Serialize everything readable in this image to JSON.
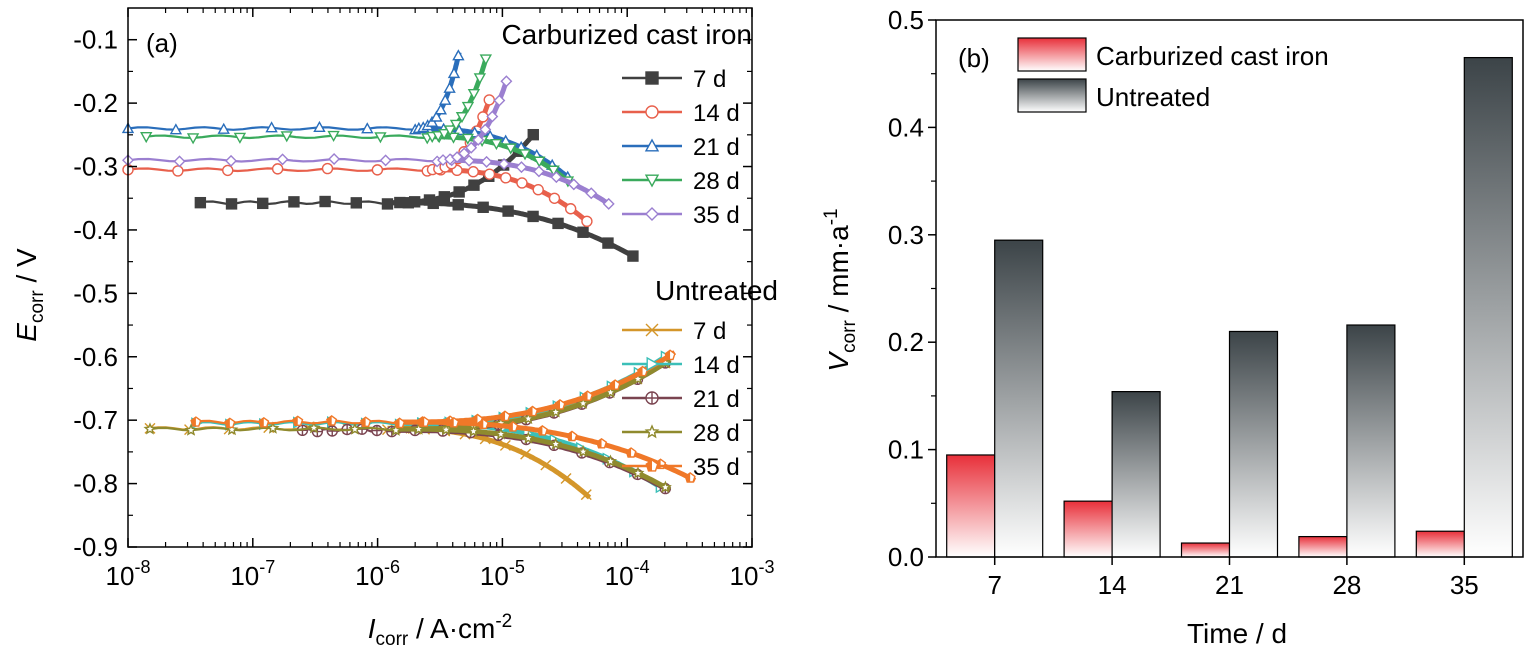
{
  "chart_data": [
    {
      "panel": "(a)",
      "type": "line",
      "x_scale": "log",
      "xlim": [
        1e-08,
        0.001
      ],
      "ylim": [
        -0.9,
        -0.05
      ],
      "xlabel": {
        "symbol": "I",
        "sub": "corr",
        "unit": " / A·cm",
        "sup": "-2"
      },
      "ylabel": {
        "symbol": "E",
        "sub": "corr",
        "unit": " / V"
      },
      "x_ticks": [
        {
          "value": 1e-08,
          "base": "10",
          "exp": "-8"
        },
        {
          "value": 1e-07,
          "base": "10",
          "exp": "-7"
        },
        {
          "value": 1e-06,
          "base": "10",
          "exp": "-6"
        },
        {
          "value": 1e-05,
          "base": "10",
          "exp": "-5"
        },
        {
          "value": 0.0001,
          "base": "10",
          "exp": "-4"
        },
        {
          "value": 0.001,
          "base": "10",
          "exp": "-3"
        }
      ],
      "y_ticks": [
        {
          "value": -0.1,
          "label": "-0.1"
        },
        {
          "value": -0.2,
          "label": "-0.2"
        },
        {
          "value": -0.3,
          "label": "-0.3"
        },
        {
          "value": -0.4,
          "label": "-0.4"
        },
        {
          "value": -0.5,
          "label": "-0.5"
        },
        {
          "value": -0.6,
          "label": "-0.6"
        },
        {
          "value": -0.7,
          "label": "-0.7"
        },
        {
          "value": -0.8,
          "label": "-0.8"
        },
        {
          "value": -0.9,
          "label": "-0.9"
        }
      ],
      "groups": [
        {
          "title": "Carburized cast iron",
          "series": [
            {
              "name": "7 d",
              "color": "#404040",
              "marker": "square",
              "ecorr": -0.357,
              "icorr": 1.2e-06,
              "start_i": 3.8e-08,
              "anodic_end": [
                1.85e-05,
                -0.245
              ],
              "cathodic_end": [
                0.00012,
                -0.445
              ]
            },
            {
              "name": "14 d",
              "color": "#e8604c",
              "marker": "circle",
              "ecorr": -0.305,
              "icorr": 2.5e-06,
              "start_i": 1e-08,
              "anodic_end": [
                8e-06,
                -0.19
              ],
              "cathodic_end": [
                5e-05,
                -0.39
              ]
            },
            {
              "name": "21 d",
              "color": "#2a6ebb",
              "marker": "triangle-up",
              "ecorr": -0.24,
              "icorr": 2e-06,
              "start_i": 1e-08,
              "anodic_end": [
                4.5e-06,
                -0.12
              ],
              "cathodic_end": [
                3.5e-05,
                -0.32
              ]
            },
            {
              "name": "28 d",
              "color": "#3aaa5c",
              "marker": "triangle-down",
              "ecorr": -0.253,
              "icorr": 2.5e-06,
              "start_i": 1.4e-08,
              "anodic_end": [
                7.5e-06,
                -0.125
              ],
              "cathodic_end": [
                3.5e-05,
                -0.326
              ]
            },
            {
              "name": "35 d",
              "color": "#9b7fd0",
              "marker": "diamond",
              "ecorr": -0.29,
              "icorr": 3e-06,
              "start_i": 1e-08,
              "anodic_end": [
                1.1e-05,
                -0.16
              ],
              "cathodic_end": [
                7.5e-05,
                -0.362
              ]
            }
          ]
        },
        {
          "title": "Untreated",
          "series": [
            {
              "name": "7 d",
              "color": "#d4962a",
              "marker": "x",
              "ecorr": -0.713,
              "icorr": 1.2e-06,
              "start_i": 1.5e-08,
              "anodic_end": [
                0.00022,
                -0.605
              ],
              "cathodic_end": [
                5e-05,
                -0.822
              ]
            },
            {
              "name": "14 d",
              "color": "#3bbfb8",
              "marker": "triangle-right",
              "ecorr": -0.705,
              "icorr": 1.5e-06,
              "start_i": 3.5e-08,
              "anodic_end": [
                0.00022,
                -0.595
              ],
              "cathodic_end": [
                0.0002,
                -0.81
              ]
            },
            {
              "name": "21 d",
              "color": "#7a4450",
              "marker": "circle-plus",
              "ecorr": -0.716,
              "icorr": 1.3e-06,
              "start_i": 2.5e-07,
              "anodic_end": [
                0.00022,
                -0.605
              ],
              "cathodic_end": [
                0.00022,
                -0.812
              ]
            },
            {
              "name": "28 d",
              "color": "#8f8a2e",
              "marker": "star",
              "ecorr": -0.714,
              "icorr": 1.4e-06,
              "start_i": 1.5e-08,
              "anodic_end": [
                0.00022,
                -0.605
              ],
              "cathodic_end": [
                0.00022,
                -0.81
              ]
            },
            {
              "name": "35 d",
              "color": "#f07828",
              "marker": "pentagon-half",
              "ecorr": -0.703,
              "icorr": 1.5e-06,
              "start_i": 3.5e-08,
              "anodic_end": [
                0.00024,
                -0.593
              ],
              "cathodic_end": [
                0.00035,
                -0.795
              ]
            }
          ]
        }
      ]
    },
    {
      "panel": "(b)",
      "type": "bar",
      "categories": [
        "7",
        "14",
        "21",
        "28",
        "35"
      ],
      "ylim": [
        0,
        0.5
      ],
      "y_ticks": [
        "0.0",
        "0.1",
        "0.2",
        "0.3",
        "0.4",
        "0.5"
      ],
      "xlabel": "Time / d",
      "ylabel": {
        "symbol": "V",
        "sub": "corr",
        "unit": " / mm·a",
        "sup": "-1"
      },
      "legend": "top-left",
      "series": [
        {
          "name": "Carburized cast iron",
          "color": "#e8303a",
          "values": [
            0.095,
            0.052,
            0.013,
            0.019,
            0.024
          ]
        },
        {
          "name": "Untreated",
          "color": "#3c4448",
          "values": [
            0.295,
            0.154,
            0.21,
            0.216,
            0.465
          ]
        }
      ]
    }
  ]
}
